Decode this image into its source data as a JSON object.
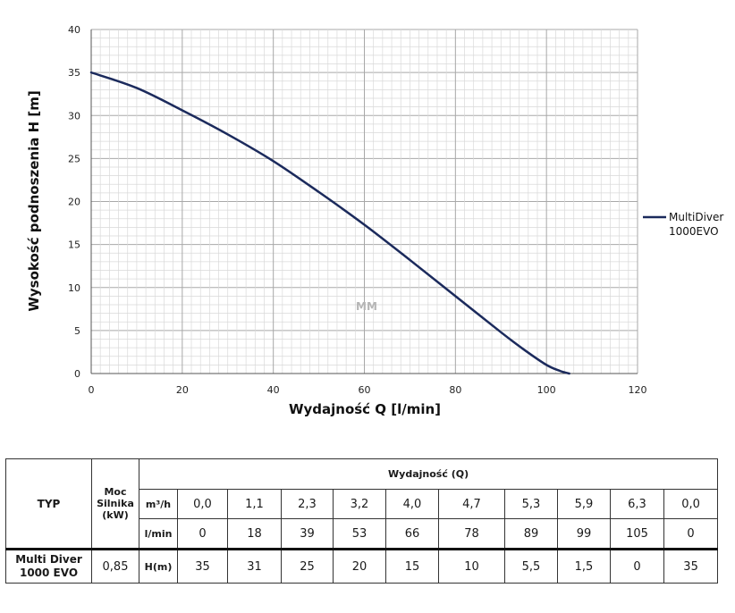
{
  "chart_data": {
    "type": "line",
    "xlabel": "Wydajność Q [l/min]",
    "ylabel": "Wysokość podnoszenia H [m]",
    "xlim": [
      0,
      120
    ],
    "ylim": [
      0,
      40
    ],
    "xticks": [
      "0",
      "20",
      "40",
      "60",
      "80",
      "100",
      "120"
    ],
    "yticks": [
      "0",
      "5",
      "10",
      "15",
      "20",
      "25",
      "30",
      "35",
      "40"
    ],
    "grid": true,
    "legend_position": "right",
    "series": [
      {
        "name": "MultiDiver 1000EVO",
        "color": "#1b2a5c",
        "x": [
          0,
          10,
          20,
          30,
          40,
          50,
          60,
          70,
          80,
          90,
          95,
          100,
          103,
          105
        ],
        "y": [
          35,
          33.2,
          30.6,
          27.8,
          24.7,
          21.1,
          17.3,
          13.2,
          9.0,
          4.8,
          2.8,
          1.0,
          0.3,
          0
        ]
      }
    ],
    "watermark": "MM"
  },
  "legend": {
    "line1": "MultiDiver",
    "line2": "1000EVO"
  },
  "table": {
    "typ_header": "TYP",
    "moc_header_1": "Moc",
    "moc_header_2": "Silnika",
    "moc_header_3": "(kW)",
    "flow_header": "Wydajność (Q)",
    "unit_m3h": "m³/h",
    "unit_lmin": "l/min",
    "unit_h": "H(m)",
    "m3h_values": [
      "0,0",
      "1,1",
      "2,3",
      "3,2",
      "4,0",
      "4,7",
      "5,3",
      "5,9",
      "6,3",
      "0,0"
    ],
    "lmin_values": [
      "0",
      "18",
      "39",
      "53",
      "66",
      "78",
      "89",
      "99",
      "105",
      "0"
    ],
    "h_values": [
      "35",
      "31",
      "25",
      "20",
      "15",
      "10",
      "5,5",
      "1,5",
      "0",
      "35"
    ],
    "model_line1": "Multi Diver",
    "model_line2": "1000 EVO",
    "power": "0,85"
  }
}
